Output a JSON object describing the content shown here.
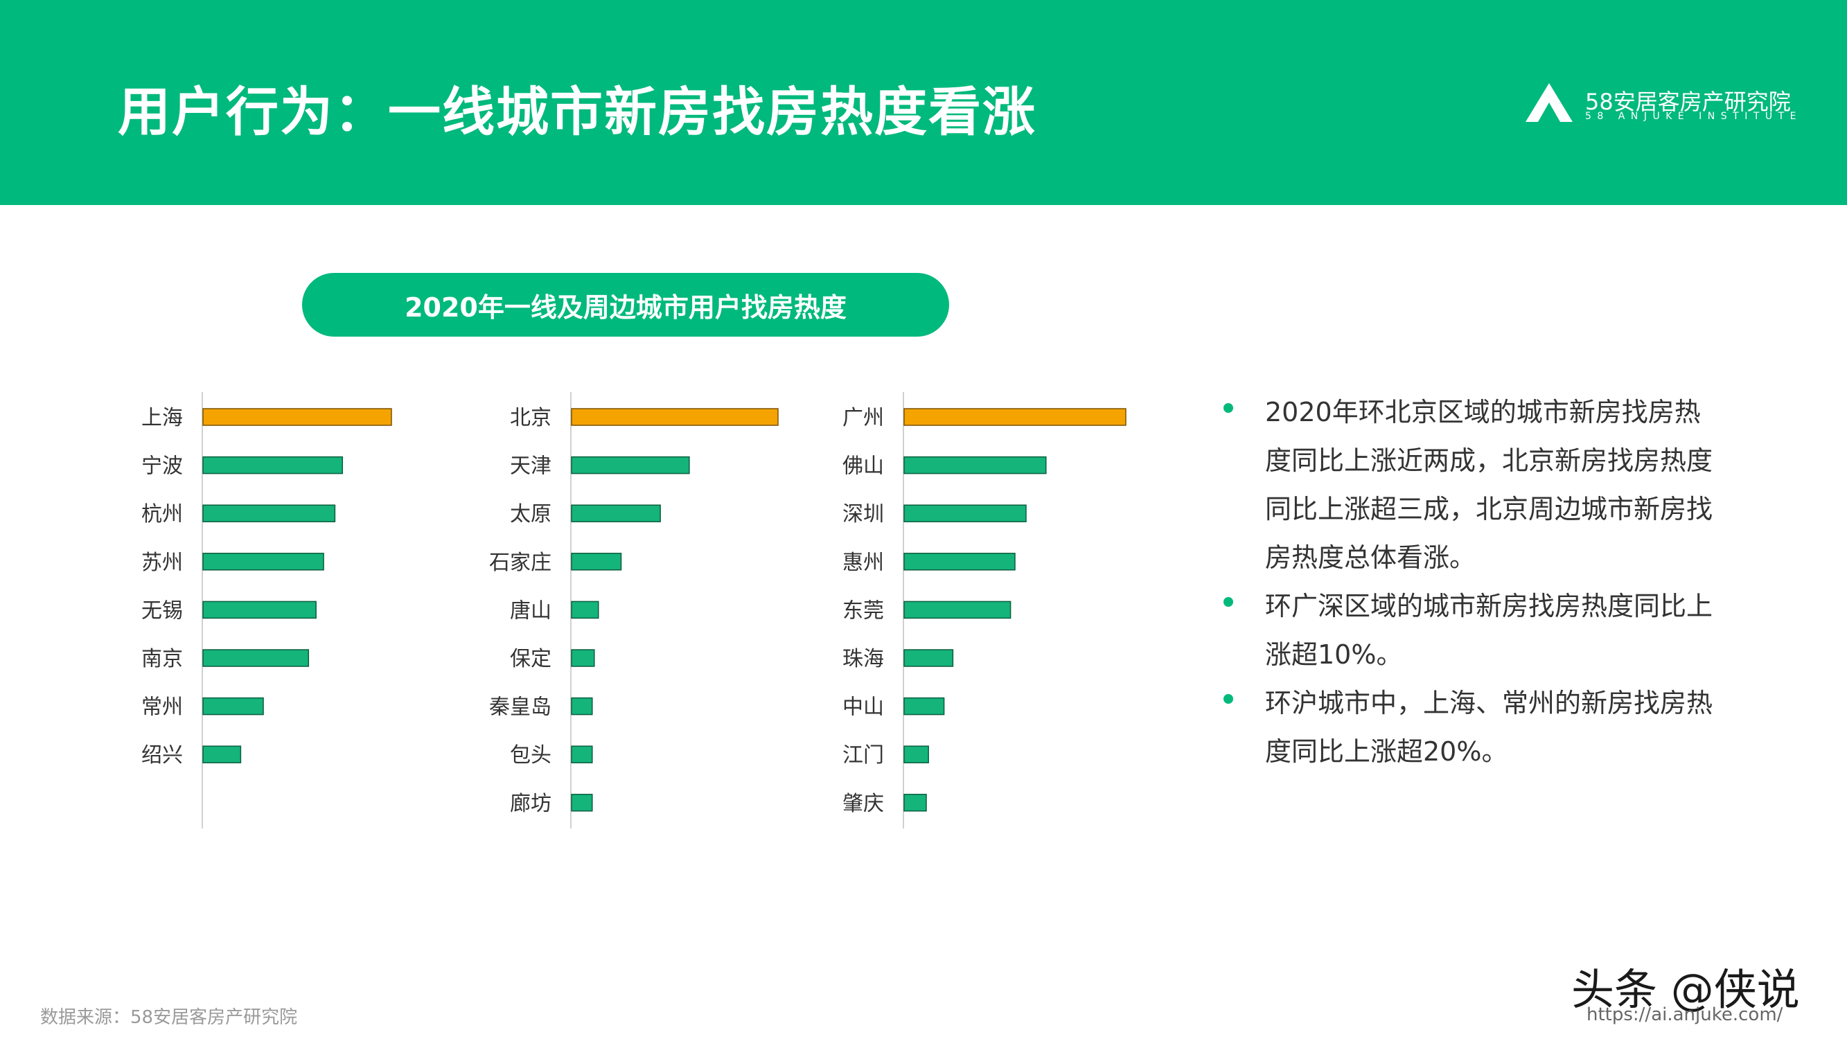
{
  "header": {
    "title": "用户行为：一线城市新房找房热度看涨",
    "logo_name": "58安居客房产研究院",
    "logo_sub": "58 ANJUKE INSTITUTE"
  },
  "chart_title": "2020年一线及周边城市用户找房热度",
  "chart_data": [
    {
      "type": "bar",
      "orientation": "horizontal",
      "categories": [
        "上海",
        "宁波",
        "杭州",
        "苏州",
        "无锡",
        "南京",
        "常州",
        "绍兴"
      ],
      "values": [
        100,
        74,
        70,
        64,
        60,
        56,
        32,
        20
      ],
      "highlight_index": 0,
      "value_axis": "unlabeled (relative heat index)"
    },
    {
      "type": "bar",
      "orientation": "horizontal",
      "categories": [
        "北京",
        "天津",
        "太原",
        "石家庄",
        "唐山",
        "保定",
        "秦皇岛",
        "包头",
        "廊坊"
      ],
      "values": [
        100,
        57,
        43,
        24,
        13,
        11,
        10,
        10,
        10
      ],
      "highlight_index": 0,
      "value_axis": "unlabeled (relative heat index)"
    },
    {
      "type": "bar",
      "orientation": "horizontal",
      "categories": [
        "广州",
        "佛山",
        "深圳",
        "惠州",
        "东莞",
        "珠海",
        "中山",
        "江门",
        "肇庆"
      ],
      "values": [
        100,
        64,
        55,
        50,
        48,
        22,
        18,
        11,
        10
      ],
      "highlight_index": 0,
      "value_axis": "unlabeled (relative heat index)"
    }
  ],
  "colors": {
    "brand_green": "#00b97c",
    "highlight_orange": "#f5a300",
    "bar_green": "#14b47a"
  },
  "bullets": [
    "2020年环北京区域的城市新房找房热度同比上涨近两成，北京新房找房热度同比上涨超三成，北京周边城市新房找房热度总体看涨。",
    "环广深区域的城市新房找房热度同比上涨超10%。",
    "环沪城市中，上海、常州的新房找房热度同比上涨超20%。"
  ],
  "footer": {
    "source": "数据来源：58安居客房产研究院",
    "watermark": "头条 @侠说",
    "url": "https://ai.anjuke.com/"
  }
}
